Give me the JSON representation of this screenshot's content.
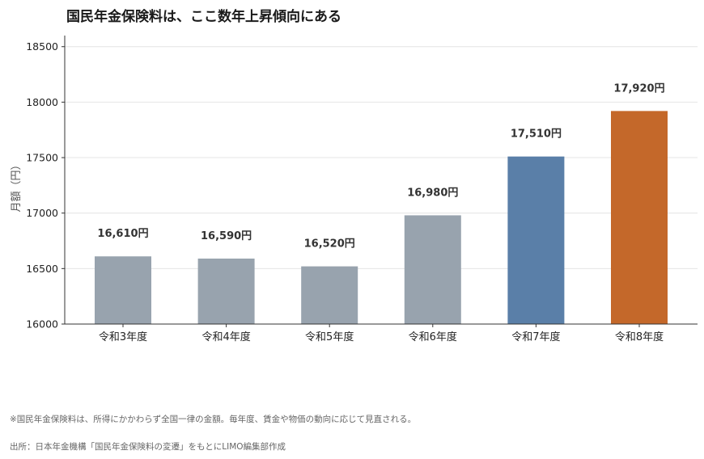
{
  "title": "国民年金保険料は、ここ数年上昇傾向にある",
  "chart_data": {
    "type": "bar",
    "categories": [
      "令和3年度",
      "令和4年度",
      "令和5年度",
      "令和6年度",
      "令和7年度",
      "令和8年度"
    ],
    "values": [
      16610,
      16590,
      16520,
      16980,
      17510,
      17920
    ],
    "data_labels": [
      "16,610円",
      "16,590円",
      "16,520円",
      "16,980円",
      "17,510円",
      "17,920円"
    ],
    "bar_colors": [
      "#98a3ae",
      "#98a3ae",
      "#98a3ae",
      "#98a3ae",
      "#5a7fa8",
      "#c4682a"
    ],
    "ylabel": "月額（円）",
    "ylim": [
      16000,
      18600
    ],
    "yticks": [
      16000,
      16500,
      17000,
      17500,
      18000,
      18500
    ],
    "grid": true,
    "legend": "none"
  },
  "notes": {
    "note1": "※国民年金保険料は、所得にかかわらず全国一律の金額。毎年度、賃金や物価の動向に応じて見直される。",
    "source": "出所：日本年金機構「国民年金保険料の変遷」をもとにLIMO編集部作成"
  },
  "colors": {
    "grid": "#e4e4e4",
    "axis": "#333333",
    "text": "#222222",
    "muted": "#666666"
  }
}
